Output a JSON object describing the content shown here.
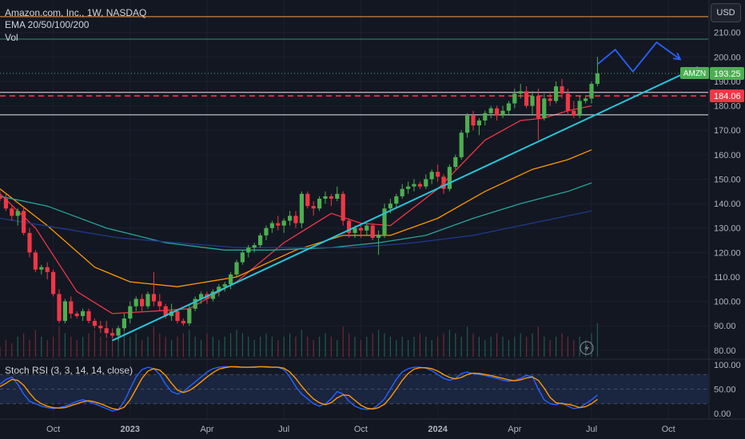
{
  "header": {
    "symbol_line": "Amazon.com, Inc., 1W, NASDAQ",
    "ema_label": "EMA 20/50/100/200",
    "vol_label": "Vol",
    "currency_button": "USD"
  },
  "stoch_rsi": {
    "label": "Stoch RSI (3, 3, 14, 14, close)",
    "ticks": [
      "100.00",
      "50.00",
      "0.00"
    ],
    "k": [
      60,
      70,
      75,
      60,
      40,
      25,
      20,
      15,
      12,
      10,
      12,
      15,
      20,
      25,
      28,
      25,
      20,
      15,
      10,
      5,
      8,
      25,
      50,
      75,
      90,
      95,
      92,
      80,
      60,
      45,
      40,
      45,
      55,
      65,
      75,
      85,
      92,
      95,
      96,
      96,
      95,
      95,
      95,
      96,
      96,
      95,
      95,
      95,
      90,
      75,
      55,
      40,
      30,
      20,
      15,
      20,
      30,
      45,
      40,
      25,
      15,
      10,
      8,
      10,
      18,
      30,
      50,
      70,
      85,
      92,
      95,
      95,
      93,
      88,
      80,
      72,
      68,
      72,
      82,
      85,
      82,
      80,
      78,
      75,
      72,
      68,
      66,
      68,
      72,
      78,
      76,
      50,
      28,
      20,
      18,
      22,
      15,
      10,
      12,
      20,
      28,
      38
    ],
    "d": [
      55,
      62,
      70,
      68,
      58,
      42,
      28,
      20,
      15,
      12,
      11,
      12,
      16,
      20,
      24,
      26,
      24,
      20,
      15,
      10,
      8,
      13,
      28,
      50,
      72,
      87,
      92,
      89,
      78,
      62,
      48,
      43,
      47,
      55,
      65,
      75,
      84,
      91,
      94,
      96,
      96,
      95,
      95,
      95,
      96,
      96,
      95,
      95,
      93,
      85,
      72,
      56,
      42,
      30,
      22,
      18,
      22,
      32,
      38,
      37,
      27,
      17,
      11,
      9,
      12,
      19,
      33,
      50,
      68,
      82,
      91,
      94,
      94,
      92,
      87,
      80,
      74,
      71,
      74,
      80,
      83,
      82,
      80,
      78,
      75,
      72,
      69,
      67,
      69,
      73,
      75,
      68,
      52,
      33,
      22,
      20,
      19,
      16,
      12,
      14,
      20,
      29
    ]
  },
  "chart_data": {
    "type": "candlestick",
    "title": "Amazon.com, Inc., 1W, NASDAQ",
    "symbol": "AMZN",
    "last_price": "193.25",
    "level_label": "184.06",
    "level_value": 184.06,
    "ylim": [
      77,
      222
    ],
    "y_ticks": [
      80,
      90,
      100,
      110,
      120,
      130,
      140,
      150,
      160,
      170,
      180,
      190,
      200,
      210
    ],
    "x_labels": [
      "Oct",
      "2023",
      "Apr",
      "Jul",
      "Oct",
      "2024",
      "Apr",
      "Jul",
      "Oct"
    ],
    "x_label_bars": [
      9,
      22,
      35,
      48,
      61,
      74,
      87,
      100,
      113
    ],
    "horizontal_levels": [
      {
        "value": 216.5,
        "color": "#f59e4b"
      },
      {
        "value": 207.3,
        "color": "#2f8f6f"
      },
      {
        "value": 193.25,
        "color": "#4caf7d",
        "dotted": true
      },
      {
        "value": 185.5,
        "color": "#e8eaed"
      },
      {
        "value": 184.06,
        "color": "#f23645",
        "dashed": true
      },
      {
        "value": 176.3,
        "color": "#e8eaed"
      }
    ],
    "trendline": {
      "from": [
        19,
        84
      ],
      "to": [
        118,
        195.9
      ],
      "color": "#26c6da"
    },
    "projection": {
      "points": [
        [
          101,
          197
        ],
        [
          104,
          203
        ],
        [
          107,
          194
        ],
        [
          111,
          206
        ],
        [
          115,
          199
        ]
      ],
      "color": "#2962ff"
    },
    "candles": [
      [
        143,
        145,
        141,
        142
      ],
      [
        142,
        144,
        137,
        138
      ],
      [
        138,
        139,
        133,
        135
      ],
      [
        135,
        138,
        131,
        137
      ],
      [
        137,
        139,
        127,
        128
      ],
      [
        128,
        130,
        118,
        120
      ],
      [
        120,
        121,
        112,
        113
      ],
      [
        113,
        115,
        111,
        114
      ],
      [
        114,
        116,
        109,
        112
      ],
      [
        112,
        113,
        102,
        103
      ],
      [
        103,
        105,
        91,
        92
      ],
      [
        92,
        101,
        91,
        100
      ],
      [
        100,
        102,
        93,
        95
      ],
      [
        95,
        96,
        93,
        94
      ],
      [
        94,
        97,
        92,
        96
      ],
      [
        96,
        97,
        91,
        92
      ],
      [
        92,
        93,
        89,
        90
      ],
      [
        90,
        92,
        87,
        89
      ],
      [
        89,
        92,
        85,
        87
      ],
      [
        87,
        89,
        85,
        86
      ],
      [
        86,
        90,
        84,
        89
      ],
      [
        89,
        95,
        88,
        93
      ],
      [
        93,
        100,
        91,
        98
      ],
      [
        98,
        102,
        96,
        101
      ],
      [
        101,
        103,
        96,
        98
      ],
      [
        98,
        104,
        97,
        103
      ],
      [
        103,
        112,
        98,
        100
      ],
      [
        100,
        103,
        96,
        98
      ],
      [
        98,
        99,
        93,
        94
      ],
      [
        94,
        99,
        92,
        96
      ],
      [
        96,
        97,
        91,
        92
      ],
      [
        92,
        93,
        90,
        91
      ],
      [
        91,
        99,
        90,
        97
      ],
      [
        97,
        102,
        96,
        101
      ],
      [
        101,
        104,
        99,
        103
      ],
      [
        103,
        104,
        99,
        101
      ],
      [
        101,
        105,
        100,
        104
      ],
      [
        104,
        107,
        102,
        106
      ],
      [
        106,
        108,
        104,
        107
      ],
      [
        107,
        112,
        105,
        111
      ],
      [
        111,
        117,
        110,
        116
      ],
      [
        116,
        121,
        115,
        120
      ],
      [
        120,
        123,
        118,
        122
      ],
      [
        122,
        124,
        120,
        123
      ],
      [
        123,
        128,
        122,
        127
      ],
      [
        127,
        131,
        125,
        130
      ],
      [
        130,
        133,
        128,
        132
      ],
      [
        132,
        135,
        129,
        131
      ],
      [
        131,
        134,
        128,
        133
      ],
      [
        133,
        137,
        131,
        135
      ],
      [
        135,
        137,
        130,
        132
      ],
      [
        132,
        145,
        130,
        144
      ],
      [
        144,
        145,
        138,
        139
      ],
      [
        139,
        141,
        135,
        138
      ],
      [
        138,
        143,
        137,
        142
      ],
      [
        142,
        145,
        140,
        143
      ],
      [
        143,
        144,
        139,
        142
      ],
      [
        142,
        147,
        141,
        144
      ],
      [
        144,
        145,
        131,
        133
      ],
      [
        133,
        134,
        126,
        128
      ],
      [
        128,
        131,
        126,
        130
      ],
      [
        130,
        132,
        126,
        129
      ],
      [
        129,
        132,
        127,
        131
      ],
      [
        131,
        132,
        125,
        126
      ],
      [
        126,
        129,
        119,
        127
      ],
      [
        127,
        140,
        126,
        138
      ],
      [
        138,
        142,
        136,
        140
      ],
      [
        140,
        144,
        138,
        143
      ],
      [
        143,
        148,
        142,
        146
      ],
      [
        146,
        149,
        144,
        147
      ],
      [
        147,
        150,
        145,
        148
      ],
      [
        148,
        149,
        146,
        147
      ],
      [
        147,
        152,
        146,
        150
      ],
      [
        150,
        154,
        148,
        153
      ],
      [
        153,
        156,
        149,
        151
      ],
      [
        151,
        152,
        144,
        146
      ],
      [
        146,
        156,
        145,
        155
      ],
      [
        155,
        160,
        154,
        159
      ],
      [
        159,
        170,
        158,
        169
      ],
      [
        169,
        177,
        167,
        176
      ],
      [
        176,
        178,
        170,
        172
      ],
      [
        172,
        175,
        168,
        174
      ],
      [
        174,
        178,
        172,
        177
      ],
      [
        177,
        180,
        175,
        179
      ],
      [
        179,
        180,
        174,
        176
      ],
      [
        176,
        180,
        175,
        178
      ],
      [
        178,
        182,
        176,
        181
      ],
      [
        181,
        187,
        179,
        185
      ],
      [
        185,
        189,
        183,
        186
      ],
      [
        186,
        188,
        179,
        180
      ],
      [
        180,
        186,
        176,
        184
      ],
      [
        184,
        187,
        166,
        175
      ],
      [
        175,
        185,
        174,
        183
      ],
      [
        183,
        186,
        180,
        182
      ],
      [
        182,
        190,
        181,
        188
      ],
      [
        188,
        191,
        183,
        185
      ],
      [
        185,
        187,
        176,
        178
      ],
      [
        178,
        182,
        175,
        176
      ],
      [
        176,
        184,
        175,
        182
      ],
      [
        182,
        184,
        181,
        183
      ],
      [
        183,
        190,
        181,
        189
      ],
      [
        189,
        200,
        188,
        193.25
      ]
    ],
    "volume": [
      3,
      5,
      4,
      6,
      7,
      5,
      8,
      6,
      5,
      6,
      9,
      7,
      6,
      5,
      6,
      7,
      8,
      6,
      5,
      6,
      7,
      8,
      6,
      7,
      5,
      6,
      9,
      7,
      6,
      5,
      6,
      7,
      8,
      6,
      5,
      7,
      6,
      5,
      6,
      7,
      8,
      7,
      6,
      5,
      6,
      7,
      6,
      5,
      6,
      7,
      6,
      8,
      6,
      5,
      6,
      7,
      6,
      5,
      9,
      7,
      6,
      5,
      6,
      7,
      8,
      7,
      6,
      5,
      6,
      5,
      6,
      7,
      6,
      5,
      6,
      7,
      8,
      7,
      6,
      9,
      7,
      6,
      5,
      6,
      7,
      6,
      5,
      6,
      7,
      6,
      7,
      9,
      6,
      5,
      6,
      7,
      6,
      5,
      6,
      5,
      7,
      10
    ],
    "ema": [
      {
        "name": "EMA 20",
        "color": "#f23645",
        "points": [
          [
            0,
            144
          ],
          [
            6,
            130
          ],
          [
            13,
            104
          ],
          [
            19,
            95
          ],
          [
            26,
            96
          ],
          [
            32,
            97
          ],
          [
            40,
            108
          ],
          [
            48,
            124
          ],
          [
            56,
            136
          ],
          [
            61,
            132
          ],
          [
            66,
            131
          ],
          [
            74,
            146
          ],
          [
            82,
            166
          ],
          [
            88,
            174
          ],
          [
            92,
            175
          ],
          [
            96,
            178
          ],
          [
            100,
            180
          ]
        ]
      },
      {
        "name": "EMA 50",
        "color": "#ff9800",
        "points": [
          [
            0,
            146
          ],
          [
            8,
            131
          ],
          [
            16,
            114
          ],
          [
            22,
            108
          ],
          [
            30,
            106
          ],
          [
            40,
            110
          ],
          [
            50,
            121
          ],
          [
            58,
            127
          ],
          [
            66,
            127
          ],
          [
            74,
            134
          ],
          [
            82,
            145
          ],
          [
            90,
            154
          ],
          [
            96,
            158
          ],
          [
            100,
            162
          ]
        ]
      },
      {
        "name": "EMA 100",
        "color": "#26a69a",
        "points": [
          [
            0,
            143
          ],
          [
            8,
            139
          ],
          [
            18,
            130
          ],
          [
            28,
            124
          ],
          [
            38,
            121
          ],
          [
            46,
            121
          ],
          [
            56,
            122
          ],
          [
            64,
            124
          ],
          [
            72,
            127
          ],
          [
            80,
            134
          ],
          [
            88,
            140
          ],
          [
            96,
            145
          ],
          [
            100,
            148.5
          ]
        ]
      },
      {
        "name": "EMA 200",
        "color": "#1e3a8a",
        "points": [
          [
            0,
            134
          ],
          [
            10,
            130
          ],
          [
            20,
            126
          ],
          [
            30,
            124
          ],
          [
            40,
            122
          ],
          [
            50,
            122
          ],
          [
            60,
            122
          ],
          [
            70,
            124
          ],
          [
            80,
            127
          ],
          [
            88,
            131
          ],
          [
            96,
            135
          ],
          [
            100,
            137
          ]
        ]
      }
    ]
  }
}
